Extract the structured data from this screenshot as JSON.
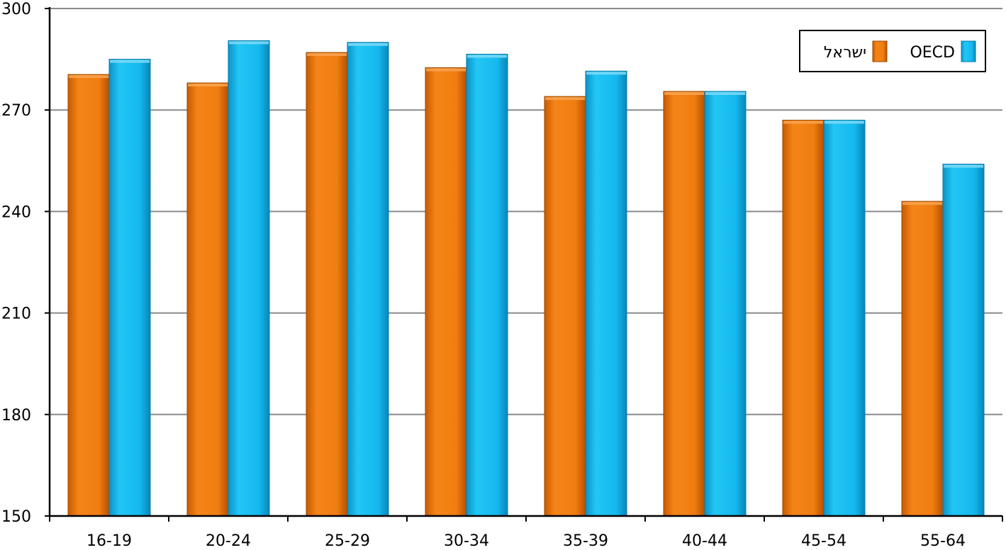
{
  "chart_data": {
    "type": "bar",
    "categories": [
      "16-19",
      "20-24",
      "25-29",
      "30-34",
      "35-39",
      "40-44",
      "45-54",
      "55-64"
    ],
    "series": [
      {
        "name": "ישראל",
        "values": [
          280.5,
          278,
          287,
          282.5,
          274,
          275.5,
          267,
          243
        ],
        "color": "#f07d10"
      },
      {
        "name": "OECD",
        "values": [
          285,
          290.5,
          290,
          286.5,
          281.5,
          275.5,
          267,
          254
        ],
        "color": "#14b8ee"
      }
    ],
    "ylim": [
      150,
      300
    ],
    "yticks": [
      150,
      180,
      210,
      240,
      270,
      300
    ],
    "grid": true,
    "legend_position": "top-right",
    "title": "",
    "xlabel": "",
    "ylabel": ""
  }
}
